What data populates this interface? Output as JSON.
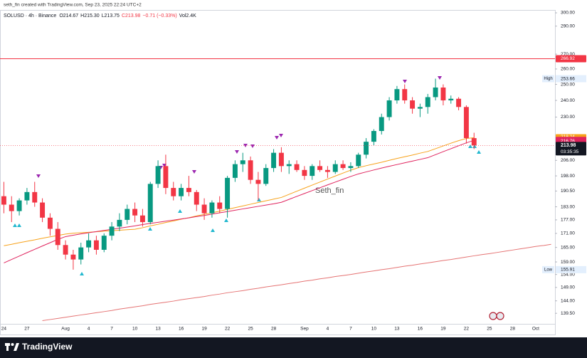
{
  "chart_data": {
    "type": "candlestick",
    "caption": "seth_fin created with TradingView.com, Sep 23, 2025 22:24 UTC+2",
    "symbol": "SOLUSD · 4h · Binance",
    "ohlc_labels": [
      "O214.67",
      "H215.30",
      "L213.75",
      "C213.98"
    ],
    "change": "−0.71 (−0.33%)",
    "volume": "Vol2.4K",
    "annotation": "Seth_fin",
    "footer": "TradingView",
    "up_color": "#089981",
    "down_color": "#f23645",
    "log_scale": true,
    "grid": false,
    "categories": [
      "24",
      null,
      null,
      "27",
      null,
      null,
      null,
      null,
      "Aug",
      null,
      null,
      "4",
      null,
      null,
      "7",
      null,
      null,
      "10",
      null,
      null,
      "13",
      null,
      null,
      "16",
      null,
      null,
      "19",
      null,
      null,
      "22",
      null,
      null,
      "25",
      null,
      null,
      "28",
      null,
      null,
      null,
      "Sep",
      null,
      null,
      "4",
      null,
      null,
      "7",
      null,
      null,
      "10",
      null,
      null,
      "13",
      null,
      null,
      "16",
      null,
      null,
      "19",
      null,
      null,
      "22",
      null,
      null,
      "25",
      null,
      null,
      "28",
      null,
      null,
      "Oct",
      null,
      null
    ],
    "open": [
      188,
      184,
      181,
      186,
      190,
      185,
      178,
      173,
      166,
      162,
      160,
      165,
      168,
      164,
      170,
      174,
      177,
      182,
      179,
      176,
      194,
      203,
      192,
      188,
      192,
      190,
      184,
      180,
      185,
      182,
      197,
      204,
      206,
      196,
      194,
      202,
      210,
      203,
      204,
      201,
      198,
      203,
      201,
      200,
      204,
      202,
      203,
      209,
      216,
      222,
      230,
      240,
      247,
      240,
      235,
      236,
      242,
      248,
      240,
      241,
      236,
      218,
      null,
      null,
      null,
      null,
      null,
      null,
      null,
      null,
      null,
      null
    ],
    "high": [
      195,
      188,
      187,
      192,
      195,
      187,
      180,
      176,
      168,
      164,
      167,
      171,
      170,
      171,
      176,
      180,
      184,
      185,
      182,
      195,
      206,
      209,
      195,
      194,
      198,
      191,
      187,
      186,
      188,
      198,
      206,
      210,
      208,
      200,
      204,
      212,
      213,
      206,
      206,
      203,
      204,
      206,
      203,
      206,
      206,
      205,
      210,
      218,
      223,
      232,
      242,
      249,
      250,
      242,
      238,
      244,
      253.66,
      250,
      243,
      242,
      237,
      221,
      null,
      null,
      null,
      null,
      null,
      null,
      null,
      null,
      null,
      null
    ],
    "low": [
      180,
      176,
      179,
      184,
      183,
      176,
      170,
      164,
      160,
      155.91,
      158,
      163,
      162,
      163,
      168,
      172,
      175,
      176,
      174,
      175,
      192,
      189,
      186,
      186,
      188,
      181,
      177,
      178,
      180,
      178,
      195,
      200,
      194,
      186,
      193,
      200,
      200,
      199,
      200,
      196,
      196,
      200,
      197,
      199,
      201,
      200,
      202,
      207,
      214,
      220,
      228,
      238,
      238,
      232,
      230,
      232,
      240,
      237,
      238,
      234,
      215,
      212,
      null,
      null,
      null,
      null,
      null,
      null,
      null,
      null,
      null,
      null
    ],
    "close": [
      184,
      181,
      186,
      190,
      185,
      178,
      173,
      166,
      162,
      160,
      165,
      168,
      164,
      170,
      174,
      177,
      182,
      179,
      176,
      194,
      203,
      192,
      188,
      192,
      190,
      184,
      180,
      185,
      182,
      197,
      204,
      206,
      196,
      194,
      202,
      210,
      203,
      204,
      201,
      198,
      203,
      201,
      200,
      204,
      202,
      203,
      209,
      216,
      222,
      230,
      240,
      247,
      240,
      235,
      236,
      242,
      248,
      240,
      241,
      236,
      218,
      213.98,
      null,
      null,
      null,
      null,
      null,
      null,
      null,
      null,
      null,
      null
    ],
    "series": [
      {
        "color": "#f7a21b",
        "values": [
          165.7,
          166.3,
          167,
          167.6,
          168.2,
          168.9,
          169.5,
          170.1,
          170.7,
          171.1,
          171.3,
          171.5,
          171.7,
          172,
          172.2,
          172.4,
          172.6,
          172.8,
          173.5,
          174.3,
          175,
          175.8,
          176.5,
          177.3,
          178,
          178.8,
          179.5,
          180.2,
          181,
          181.8,
          182.6,
          183.4,
          184.2,
          185,
          185.8,
          186.6,
          187.4,
          188.9,
          190.4,
          191.9,
          193.4,
          194.9,
          196.4,
          197.9,
          199.4,
          200.9,
          202.2,
          203.2,
          204.1,
          205,
          206,
          207,
          207.9,
          208.8,
          209.8,
          210.7,
          212.2,
          213.7,
          215.2,
          216.6,
          217.8,
          218.24,
          null,
          null,
          null,
          null,
          null,
          null,
          null,
          null,
          null,
          null
        ]
      },
      {
        "color": "#e0245e",
        "values": [
          158.6,
          160,
          161.4,
          162.8,
          164.2,
          165.6,
          167,
          168.4,
          169.6,
          170.2,
          170.8,
          171.3,
          171.8,
          172.3,
          172.8,
          173.3,
          173.8,
          174.3,
          174.9,
          175.4,
          175.9,
          176.4,
          176.9,
          177.4,
          177.9,
          178.5,
          179,
          179.6,
          180.2,
          180.8,
          181.4,
          182,
          182.6,
          183.2,
          183.8,
          184.4,
          185.1,
          186.5,
          187.9,
          189.3,
          190.7,
          192.1,
          193.5,
          194.9,
          196.3,
          197.7,
          199,
          200,
          201,
          202,
          202.9,
          203.8,
          204.7,
          205.6,
          206.5,
          207.4,
          209,
          210.6,
          212.2,
          213.8,
          215.4,
          216.76,
          null,
          null,
          null,
          null,
          null,
          null,
          null,
          null,
          null,
          null
        ]
      },
      {
        "color": "#e57373",
        "values": [
          null,
          null,
          null,
          null,
          null,
          136.9,
          137.3,
          137.7,
          138.1,
          138.5,
          138.9,
          139.3,
          139.7,
          140.1,
          140.5,
          141.0,
          141.4,
          141.8,
          142.2,
          142.7,
          143.1,
          143.5,
          143.9,
          144.4,
          144.8,
          145.2,
          145.6,
          146.1,
          146.5,
          147.0,
          147.4,
          147.8,
          148.3,
          148.7,
          149.2,
          149.6,
          150.0,
          150.5,
          150.9,
          151.4,
          151.8,
          152.3,
          152.7,
          153.2,
          153.6,
          154.0,
          154.5,
          155.0,
          155.4,
          155.9,
          156.3,
          156.8,
          157.3,
          157.7,
          158.2,
          158.6,
          159.1,
          159.6,
          160.0,
          160.5,
          161.0,
          161.5,
          162.0,
          162.4,
          162.9,
          163.4,
          163.9,
          164.4,
          164.9,
          165.4,
          165.8,
          166.3
        ]
      }
    ],
    "resistance": {
      "value": 266.92,
      "color": "#f23645"
    },
    "last_price": 213.98,
    "countdown": "03:35:35",
    "high_marker": {
      "label": "High",
      "value": 253.66
    },
    "low_marker": {
      "label": "Low",
      "value": 155.91
    },
    "ylim": [
      135.8,
      304.4
    ],
    "yticks": [
      {
        "value": 300,
        "label": "300.00"
      },
      {
        "value": 290,
        "label": "290.00"
      },
      {
        "value": 270,
        "label": "270.00"
      },
      {
        "value": 260,
        "label": "260.00"
      },
      {
        "value": 250,
        "label": "250.00"
      },
      {
        "value": 240,
        "label": "240.00"
      },
      {
        "value": 230,
        "label": "230.00"
      },
      {
        "value": 206,
        "label": "206.00"
      },
      {
        "value": 198,
        "label": "198.00"
      },
      {
        "value": 190.5,
        "label": "190.50"
      },
      {
        "value": 183,
        "label": "183.00"
      },
      {
        "value": 177,
        "label": "177.00"
      },
      {
        "value": 171,
        "label": "171.00"
      },
      {
        "value": 165,
        "label": "165.00"
      },
      {
        "value": 159,
        "label": "159.00"
      },
      {
        "value": 154,
        "label": "154.00"
      },
      {
        "value": 149,
        "label": "149.00"
      },
      {
        "value": 144,
        "label": "144.00"
      },
      {
        "value": 139.5,
        "label": "139.50"
      }
    ]
  }
}
